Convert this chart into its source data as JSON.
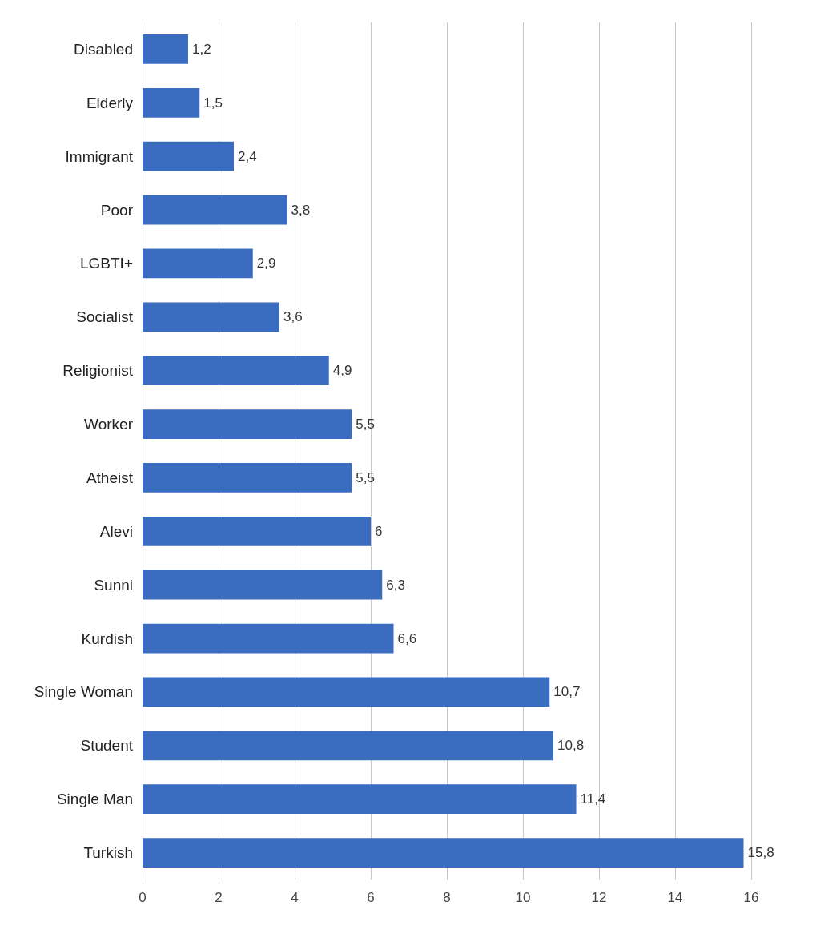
{
  "chart_data": {
    "type": "bar",
    "orientation": "horizontal",
    "categories": [
      "Disabled",
      "Elderly",
      "Immigrant",
      "Poor",
      "LGBTI+",
      "Socialist",
      "Religionist",
      "Worker",
      "Atheist",
      "Alevi",
      "Sunni",
      "Kurdish",
      "Single Woman",
      "Student",
      "Single Man",
      "Turkish"
    ],
    "values": [
      1.2,
      1.5,
      2.4,
      3.8,
      2.9,
      3.6,
      4.9,
      5.5,
      5.5,
      6,
      6.3,
      6.6,
      10.7,
      10.8,
      11.4,
      15.8
    ],
    "value_labels": [
      "1,2",
      "1,5",
      "2,4",
      "3,8",
      "2,9",
      "3,6",
      "4,9",
      "5,5",
      "5,5",
      "6",
      "6,3",
      "6,6",
      "10,7",
      "10,8",
      "11,4",
      "15,8"
    ],
    "color": "#3a6cc0",
    "xlim": [
      0,
      16
    ],
    "xticks": [
      0,
      2,
      4,
      6,
      8,
      10,
      12,
      14,
      16
    ],
    "grid": "x"
  }
}
